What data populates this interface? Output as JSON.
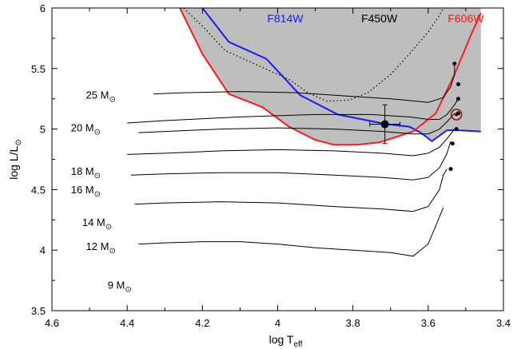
{
  "chart_data": {
    "type": "line",
    "title": "",
    "xlabel": "log T",
    "xlabel_sub": "eff",
    "ylabel": "log L/L",
    "sun_symbol": "⊙",
    "xlim": [
      4.6,
      3.4
    ],
    "ylim": [
      3.5,
      6.0
    ],
    "x_reversed": true,
    "xticks": [
      4.6,
      4.4,
      4.2,
      4.0,
      3.8,
      3.6,
      3.4
    ],
    "xtick_labels": [
      "4.6",
      "4.4",
      "4.2",
      "4",
      "3.8",
      "3.6",
      "3.4"
    ],
    "yticks": [
      3.5,
      4.0,
      4.5,
      5.0,
      5.5,
      6.0
    ],
    "ytick_labels": [
      "3.5",
      "4",
      "4.5",
      "5",
      "5.5",
      "6"
    ],
    "grid": false,
    "colors": {
      "F814W": "#1a1aff",
      "F606W": "#ff1a1a",
      "F450W": "#000000",
      "shade": "#bebebe",
      "circle": "#a01010"
    },
    "filters": [
      {
        "name": "F814W",
        "color": "#1a1aff",
        "style": "solid",
        "x": [
          4.2,
          4.13,
          4.03,
          3.94,
          3.84,
          3.71,
          3.65,
          3.62,
          3.59,
          3.55,
          3.52,
          3.46
        ],
        "y": [
          6.0,
          5.72,
          5.58,
          5.28,
          5.12,
          5.04,
          5.02,
          4.97,
          4.9,
          4.99,
          4.99,
          4.98
        ]
      },
      {
        "name": "F606W",
        "color": "#ff1a1a",
        "style": "solid",
        "x": [
          4.26,
          4.2,
          4.13,
          4.04,
          3.97,
          3.9,
          3.85,
          3.79,
          3.73,
          3.64,
          3.58,
          3.53,
          3.49,
          3.46
        ],
        "y": [
          6.0,
          5.62,
          5.29,
          5.18,
          5.02,
          4.91,
          4.87,
          4.87,
          4.89,
          4.98,
          5.13,
          5.45,
          5.75,
          5.96
        ]
      },
      {
        "name": "F450W",
        "color": "#000000",
        "style": "dotted",
        "x": [
          4.25,
          4.2,
          4.14,
          4.07,
          4.02,
          3.97,
          3.92,
          3.87,
          3.81,
          3.76,
          3.7,
          3.65,
          3.6,
          3.57,
          3.56
        ],
        "y": [
          6.0,
          5.85,
          5.65,
          5.55,
          5.48,
          5.41,
          5.3,
          5.23,
          5.24,
          5.3,
          5.45,
          5.62,
          5.8,
          5.94,
          6.0
        ]
      }
    ],
    "filter_labels": [
      {
        "name": "F814W",
        "x": 3.98,
        "y": 5.88
      },
      {
        "name": "F450W",
        "x": 3.73,
        "y": 5.88
      },
      {
        "name": "F606W",
        "x": 3.5,
        "y": 5.88
      }
    ],
    "shaded_region": {
      "x": [
        4.26,
        4.2,
        4.13,
        4.04,
        3.97,
        3.9,
        3.85,
        3.79,
        3.73,
        3.64,
        3.62,
        3.59,
        3.55,
        3.52,
        3.46,
        3.46,
        4.26
      ],
      "y": [
        6.0,
        5.62,
        5.29,
        5.18,
        5.02,
        4.91,
        4.87,
        4.87,
        4.89,
        4.98,
        4.97,
        4.9,
        4.99,
        4.99,
        4.98,
        6.0,
        6.0
      ]
    },
    "tracks": [
      {
        "mass_label": "25 M",
        "label_x": 4.47,
        "label_y": 5.25,
        "x": [
          4.33,
          4.25,
          4.1,
          3.95,
          3.8,
          3.7,
          3.63,
          3.6,
          3.56,
          3.54,
          3.53,
          3.53
        ],
        "y": [
          5.29,
          5.3,
          5.31,
          5.3,
          5.27,
          5.25,
          5.23,
          5.22,
          5.26,
          5.35,
          5.45,
          5.54
        ]
      },
      {
        "mass_label": "20 M",
        "label_x": 4.51,
        "label_y": 4.98,
        "x": [
          4.4,
          4.3,
          4.1,
          3.9,
          3.75,
          3.65,
          3.6,
          3.57,
          3.55,
          3.53,
          3.52
        ],
        "y": [
          5.05,
          5.07,
          5.1,
          5.12,
          5.12,
          5.1,
          5.08,
          5.08,
          5.12,
          5.2,
          5.25
        ]
      },
      {
        "mass_label": "18 M",
        "label_x": 4.51,
        "label_y": 4.62,
        "x": [
          4.37,
          4.3,
          4.15,
          4.0,
          3.85,
          3.72,
          3.64,
          3.6,
          3.57,
          3.55,
          3.53
        ],
        "y": [
          4.97,
          4.98,
          5.0,
          5.01,
          5.0,
          4.98,
          4.96,
          4.96,
          5.0,
          5.06,
          5.13
        ]
      },
      {
        "mass_label": "16 M",
        "label_x": 4.51,
        "label_y": 4.47,
        "x": [
          4.4,
          4.3,
          4.15,
          4.0,
          3.85,
          3.72,
          3.64,
          3.6,
          3.57,
          3.55,
          3.53
        ],
        "y": [
          4.79,
          4.8,
          4.82,
          4.83,
          4.82,
          4.8,
          4.78,
          4.8,
          4.85,
          4.92,
          5.0
        ]
      },
      {
        "mass_label": "14 M",
        "label_x": 4.48,
        "label_y": 4.2,
        "x": [
          4.39,
          4.3,
          4.15,
          4.0,
          3.85,
          3.72,
          3.64,
          3.6,
          3.57,
          3.55,
          3.54
        ],
        "y": [
          4.62,
          4.63,
          4.64,
          4.64,
          4.62,
          4.6,
          4.58,
          4.6,
          4.68,
          4.8,
          4.9
        ]
      },
      {
        "mass_label": "12 M",
        "label_x": 4.47,
        "label_y": 4.0,
        "x": [
          4.38,
          4.3,
          4.15,
          4.0,
          3.85,
          3.72,
          3.64,
          3.6,
          3.57,
          3.56,
          3.55
        ],
        "y": [
          4.38,
          4.39,
          4.4,
          4.39,
          4.36,
          4.34,
          4.32,
          4.36,
          4.5,
          4.62,
          4.67
        ]
      },
      {
        "mass_label": "9 M",
        "label_x": 4.42,
        "label_y": 3.68,
        "x": [
          4.37,
          4.3,
          4.2,
          4.1,
          4.0,
          3.9,
          3.8,
          3.7,
          3.64,
          3.6,
          3.58,
          3.56
        ],
        "y": [
          4.05,
          4.06,
          4.07,
          4.07,
          4.05,
          4.02,
          4.0,
          3.98,
          3.95,
          4.05,
          4.2,
          4.35
        ]
      }
    ],
    "track_endpoints": {
      "x": [
        3.53,
        3.52,
        3.52,
        3.52,
        3.525,
        3.535,
        3.54
      ],
      "y": [
        5.54,
        5.37,
        5.25,
        5.13,
        5.0,
        4.88,
        4.67
      ]
    },
    "observed_point": {
      "x": 3.715,
      "y": 5.04,
      "xerr": 0.04,
      "yerr": 0.16
    },
    "circled_point": {
      "x": 3.525,
      "y": 5.12
    }
  }
}
